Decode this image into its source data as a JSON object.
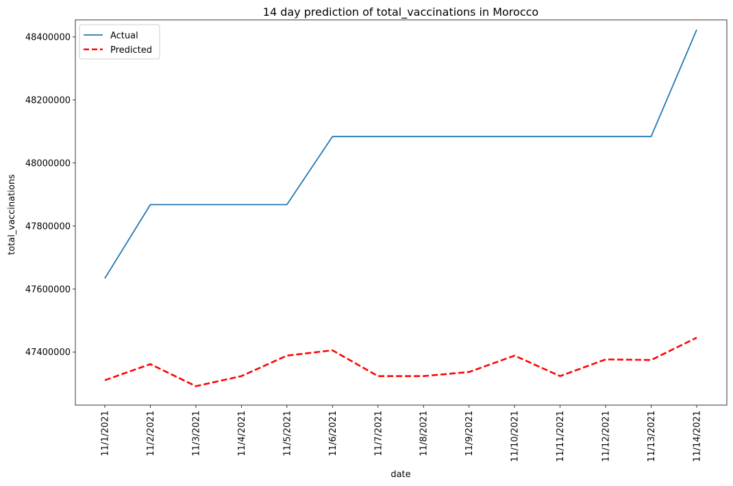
{
  "chart_data": {
    "type": "line",
    "title": "14 day prediction of total_vaccinations in Morocco",
    "xlabel": "date",
    "ylabel": "total_vaccinations",
    "categories": [
      "11/1/2021",
      "11/2/2021",
      "11/3/2021",
      "11/4/2021",
      "11/5/2021",
      "11/6/2021",
      "11/7/2021",
      "11/8/2021",
      "11/9/2021",
      "11/10/2021",
      "11/11/2021",
      "11/12/2021",
      "11/13/2021",
      "11/14/2021"
    ],
    "ylim": [
      47232000,
      48454000
    ],
    "yticks": [
      47400000,
      47600000,
      47800000,
      48000000,
      48200000,
      48400000
    ],
    "grid": false,
    "legend": "top-left",
    "series": [
      {
        "name": "Actual",
        "color": "#1f77b4",
        "style": "solid",
        "values": [
          47634000,
          47868000,
          47868000,
          47868000,
          47868000,
          48084000,
          48084000,
          48084000,
          48084000,
          48084000,
          48084000,
          48084000,
          48084000,
          48423000
        ]
      },
      {
        "name": "Predicted",
        "color": "#ff0000",
        "style": "dashed",
        "values": [
          47311000,
          47362000,
          47292000,
          47324000,
          47389000,
          47406000,
          47324000,
          47324000,
          47337000,
          47389000,
          47324000,
          47377000,
          47375000,
          47446000
        ]
      }
    ]
  }
}
